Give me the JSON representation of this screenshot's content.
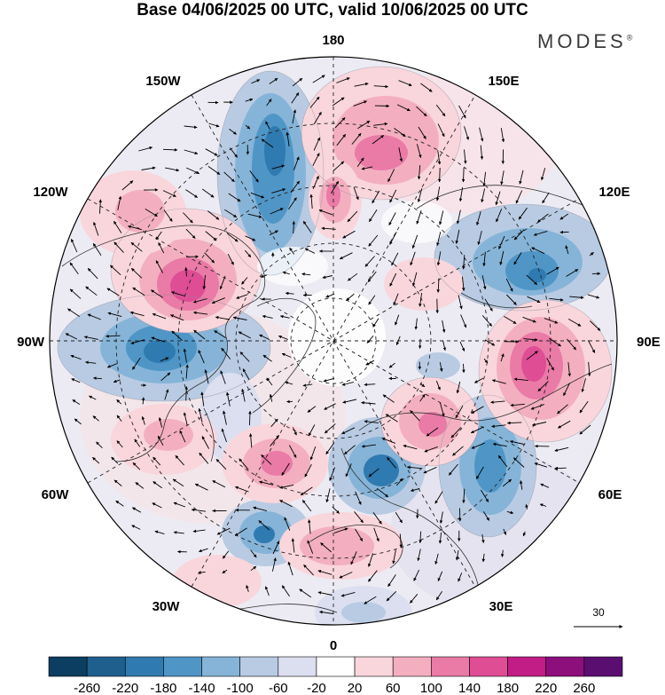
{
  "title": "Base 04/06/2025 00 UTC, valid 10/06/2025 00 UTC",
  "brand": {
    "name": "MODES",
    "mark": "®"
  },
  "longitude_labels": {
    "top": "180",
    "bottom": "0",
    "left": "90W",
    "right": "90E",
    "upper_left": "150W",
    "upper_right": "150E",
    "mid_left": "120W",
    "mid_right": "120E",
    "lower_left": "60W",
    "lower_right": "60E",
    "bottom_left": "30W",
    "bottom_right": "30E"
  },
  "vector_scale_label": "30",
  "colorbar": {
    "ticks": [
      "-260",
      "-220",
      "-180",
      "-140",
      "-100",
      "-60",
      "-20",
      "20",
      "60",
      "100",
      "140",
      "180",
      "220",
      "260"
    ],
    "colors": [
      "#0b3e60",
      "#1f5f8e",
      "#2f7ab0",
      "#4f96c7",
      "#85b4d8",
      "#b8cbe3",
      "#dcdff0",
      "#ffffff",
      "#f9d6dc",
      "#f3afc0",
      "#ea7aa6",
      "#df4d95",
      "#c21c86",
      "#8c0f7c",
      "#5a0f70"
    ]
  },
  "colors": {
    "accent": "#df4d95",
    "ocean": "#ffffff",
    "land_outline": "#333333"
  }
}
